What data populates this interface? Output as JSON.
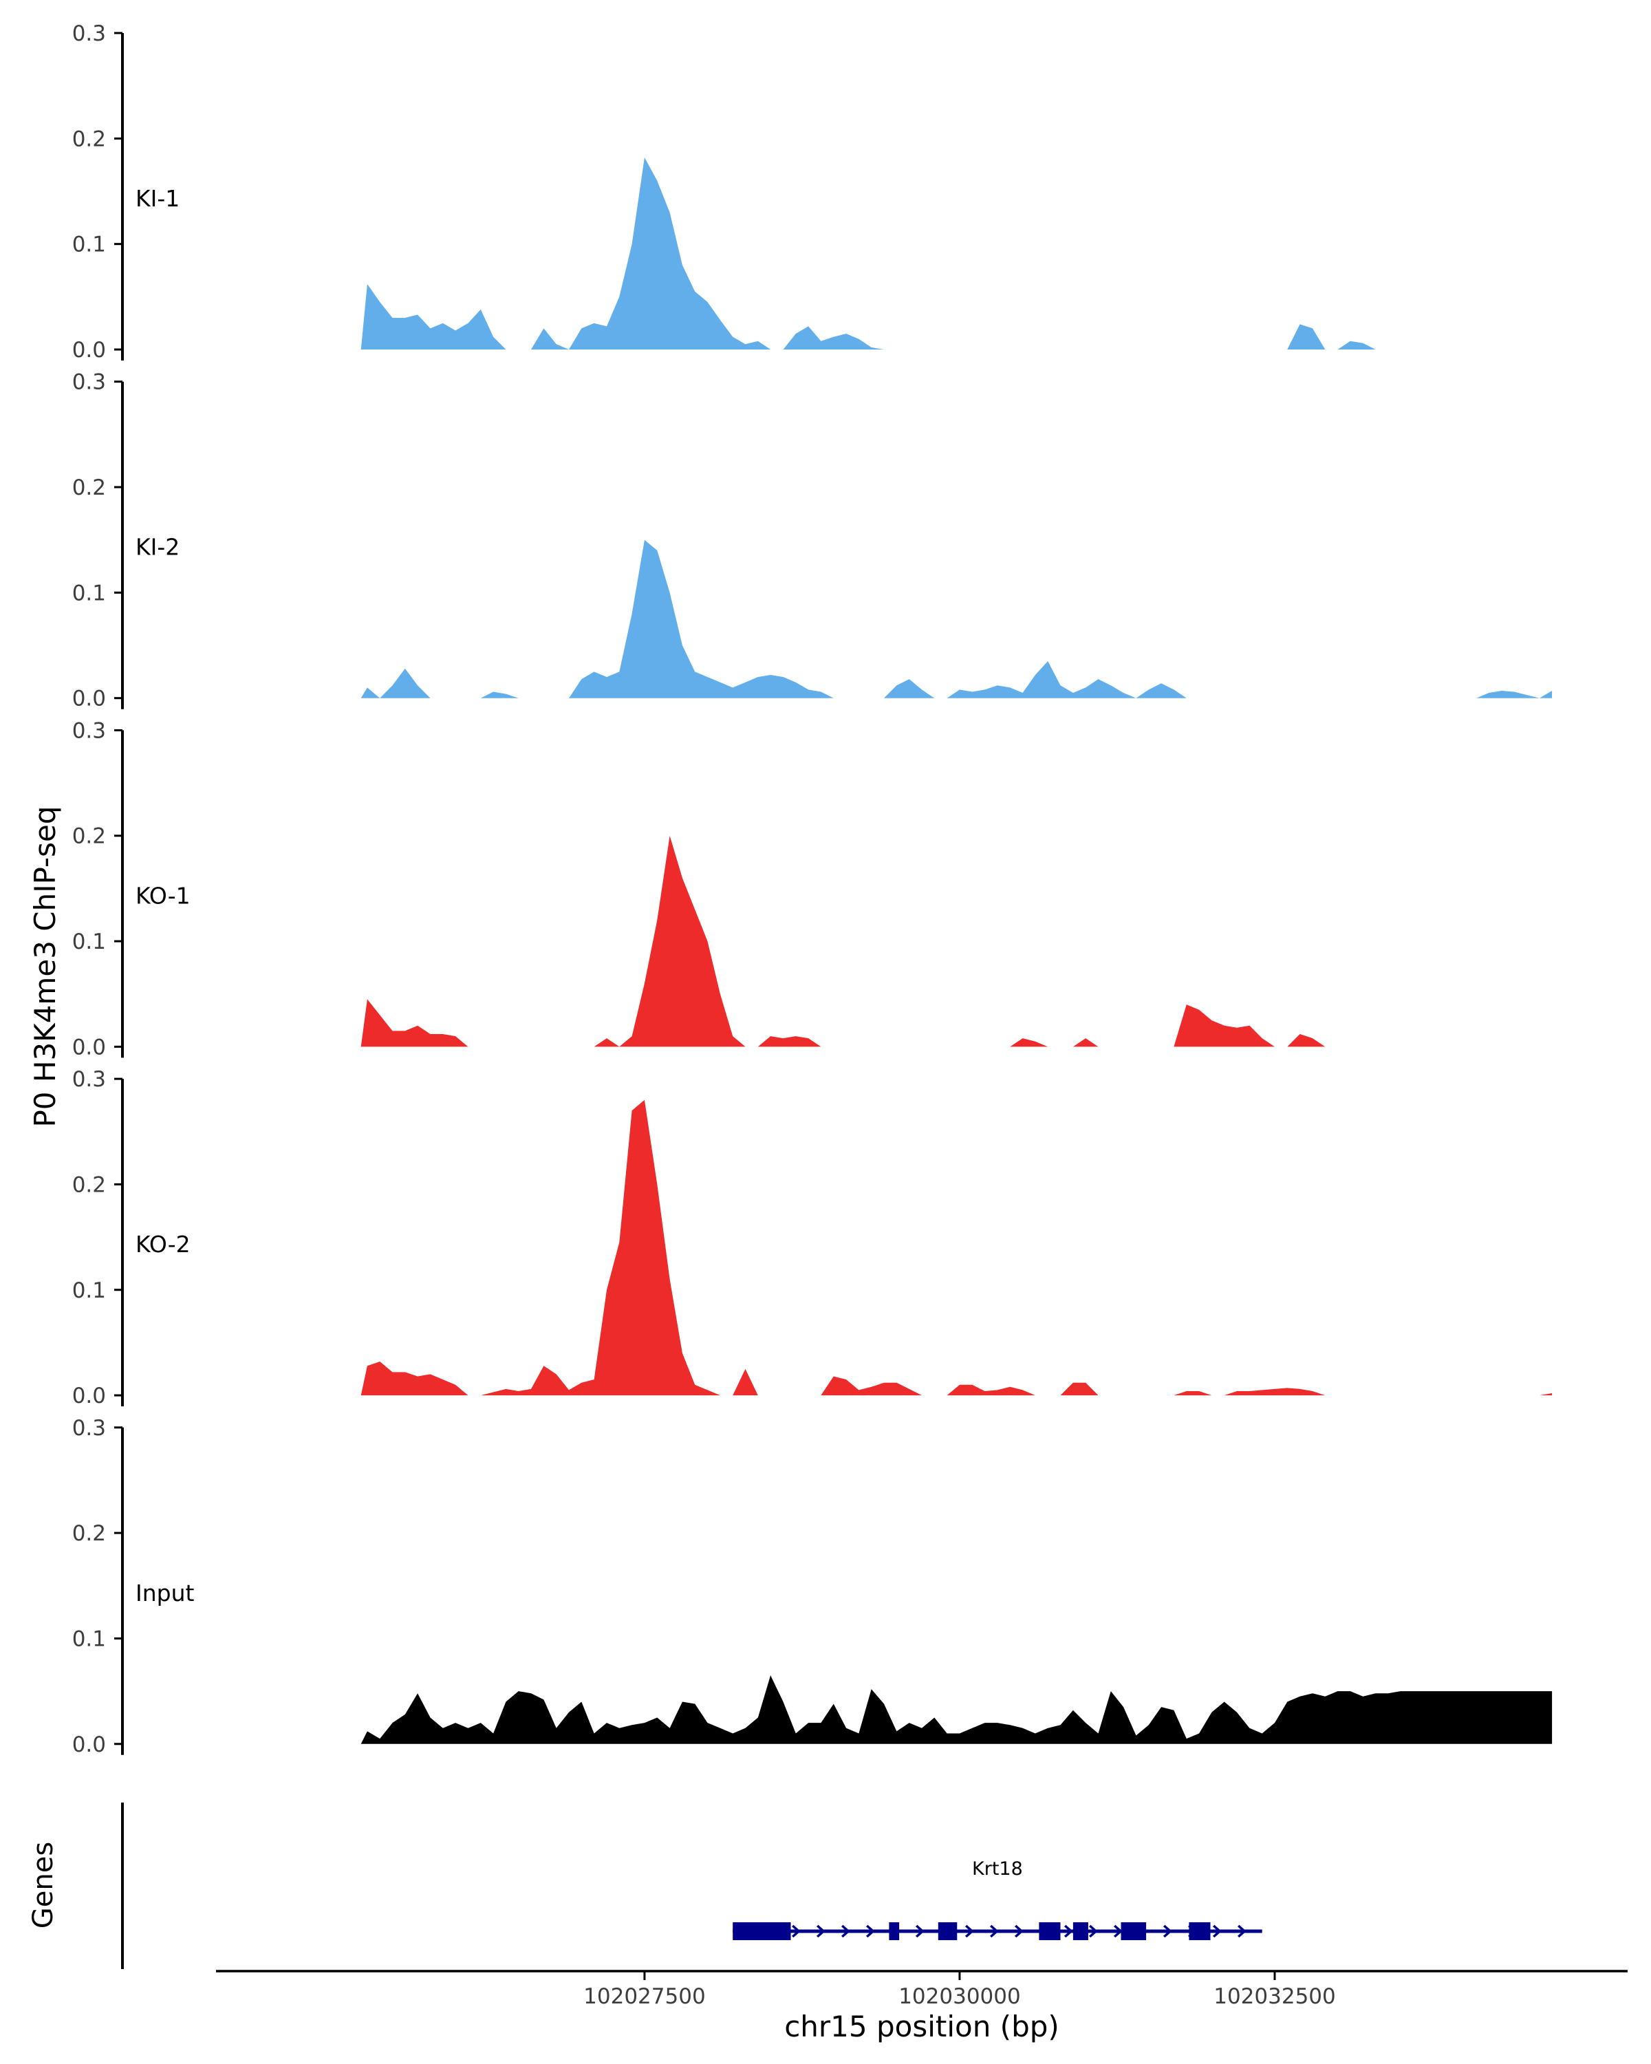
{
  "chart_data": {
    "type": "area",
    "title": "",
    "ylabel": "P0 H3K4me3 ChIP-seq",
    "xlabel": "chr15 position (bp)",
    "xlim": [
      102024100,
      102035300
    ],
    "x_ticks": [
      102027500,
      102030000,
      102032500
    ],
    "x_tick_labels": [
      "102027500",
      "102030000",
      "102032500"
    ],
    "ylim": [
      0,
      0.3
    ],
    "y_ticks": [
      0,
      0.1,
      0.2,
      0.3
    ],
    "y_tick_labels": [
      "0.0",
      "0.1",
      "0.2",
      "0.3"
    ],
    "grid": false,
    "colors": {
      "KI": "#62aeeb",
      "KO": "#ee2b2b",
      "Input": "#000000",
      "gene": "#00008b",
      "axis": "#000000",
      "text": "#3d3d3d"
    },
    "series": [
      {
        "name": "KI-1",
        "color": "#62aeeb",
        "x": [
          102025250,
          102025300,
          102025400,
          102025500,
          102025600,
          102025700,
          102025800,
          102025900,
          102026000,
          102026100,
          102026200,
          102026300,
          102026400,
          102026500,
          102026600,
          102026700,
          102026800,
          102026900,
          102027000,
          102027100,
          102027200,
          102027300,
          102027400,
          102027500,
          102027600,
          102027700,
          102027800,
          102027900,
          102028000,
          102028100,
          102028200,
          102028300,
          102028400,
          102028500,
          102028600,
          102028700,
          102028800,
          102028900,
          102029000,
          102029100,
          102029200,
          102029300,
          102029400,
          102029500,
          102029600,
          102029700,
          102029800,
          102029900,
          102030000,
          102030100,
          102030200,
          102030300,
          102030400,
          102030500,
          102030600,
          102030700,
          102030800,
          102030900,
          102031000,
          102031100,
          102031200,
          102031300,
          102031400,
          102031500,
          102031600,
          102031700,
          102031800,
          102031900,
          102032000,
          102032100,
          102032200,
          102032300,
          102032400,
          102032500,
          102032600,
          102032700,
          102032800,
          102032900,
          102033000,
          102033100,
          102033200,
          102033300,
          102033400,
          102033500
        ],
        "y": [
          0,
          0.062,
          0.045,
          0.03,
          0.03,
          0.033,
          0.02,
          0.025,
          0.018,
          0.025,
          0.038,
          0.012,
          0,
          0,
          0,
          0.02,
          0.005,
          0,
          0.02,
          0.025,
          0.022,
          0.05,
          0.1,
          0.182,
          0.16,
          0.13,
          0.08,
          0.055,
          0.045,
          0.028,
          0.012,
          0.005,
          0.008,
          0,
          0,
          0.015,
          0.022,
          0.008,
          0.012,
          0.015,
          0.01,
          0.002,
          0,
          0,
          0,
          0,
          0,
          0,
          0,
          0,
          0,
          0,
          0,
          0,
          0,
          0,
          0,
          0,
          0,
          0,
          0,
          0,
          0,
          0,
          0,
          0,
          0,
          0,
          0,
          0,
          0,
          0,
          0,
          0,
          0,
          0.024,
          0.02,
          0,
          0,
          0.008,
          0.006,
          0,
          0,
          0
        ]
      },
      {
        "name": "KI-2",
        "color": "#62aeeb",
        "x": [
          102025250,
          102025300,
          102025400,
          102025500,
          102025600,
          102025700,
          102025800,
          102025900,
          102026000,
          102026100,
          102026200,
          102026300,
          102026400,
          102026500,
          102026600,
          102026700,
          102026800,
          102026900,
          102027000,
          102027100,
          102027200,
          102027300,
          102027400,
          102027500,
          102027600,
          102027700,
          102027800,
          102027900,
          102028000,
          102028100,
          102028200,
          102028300,
          102028400,
          102028500,
          102028600,
          102028700,
          102028800,
          102028900,
          102029000,
          102029100,
          102029200,
          102029300,
          102029400,
          102029500,
          102029600,
          102029700,
          102029800,
          102029900,
          102030000,
          102030100,
          102030200,
          102030300,
          102030400,
          102030500,
          102030600,
          102030700,
          102030800,
          102030900,
          102031000,
          102031100,
          102031200,
          102031300,
          102031400,
          102031500,
          102031600,
          102031700,
          102031800,
          102031900,
          102032000,
          102032100,
          102032200,
          102032300,
          102032400,
          102032500,
          102032600,
          102032700,
          102032800,
          102032900,
          102033000,
          102033100,
          102033200,
          102033300,
          102033400,
          102033500,
          102033600,
          102033700,
          102033800,
          102033900,
          102034000,
          102034100,
          102034200,
          102034300,
          102034400,
          102034500,
          102034600,
          102034700
        ],
        "y": [
          0,
          0.01,
          0,
          0.012,
          0.028,
          0.012,
          0,
          0,
          0,
          0,
          0,
          0.006,
          0.004,
          0,
          0,
          0,
          0,
          0,
          0.018,
          0.025,
          0.02,
          0.025,
          0.08,
          0.15,
          0.14,
          0.1,
          0.05,
          0.025,
          0.02,
          0.015,
          0.01,
          0.015,
          0.02,
          0.022,
          0.02,
          0.015,
          0.008,
          0.006,
          0,
          0,
          0,
          0,
          0,
          0.012,
          0.018,
          0.008,
          0,
          0,
          0.008,
          0.006,
          0.008,
          0.012,
          0.01,
          0.005,
          0.022,
          0.035,
          0.012,
          0.005,
          0.01,
          0.018,
          0.012,
          0.005,
          0,
          0.008,
          0.014,
          0.008,
          0,
          0,
          0,
          0,
          0,
          0,
          0,
          0,
          0,
          0,
          0,
          0,
          0,
          0,
          0,
          0,
          0,
          0,
          0,
          0,
          0,
          0,
          0,
          0,
          0.005,
          0.007,
          0.006,
          0.003,
          0,
          0.007
        ]
      },
      {
        "name": "KO-1",
        "color": "#ee2b2b",
        "x": [
          102025250,
          102025300,
          102025400,
          102025500,
          102025600,
          102025700,
          102025800,
          102025900,
          102026000,
          102026100,
          102026200,
          102026300,
          102026400,
          102026500,
          102026600,
          102026700,
          102026800,
          102026900,
          102027000,
          102027100,
          102027200,
          102027300,
          102027400,
          102027500,
          102027600,
          102027700,
          102027800,
          102027900,
          102028000,
          102028100,
          102028200,
          102028300,
          102028400,
          102028500,
          102028600,
          102028700,
          102028800,
          102028900,
          102029000,
          102029100,
          102029200,
          102029300,
          102029400,
          102029500,
          102029600,
          102029700,
          102029800,
          102029900,
          102030000,
          102030100,
          102030200,
          102030300,
          102030400,
          102030500,
          102030600,
          102030700,
          102030800,
          102030900,
          102031000,
          102031100,
          102031200,
          102031300,
          102031400,
          102031500,
          102031600,
          102031700,
          102031800,
          102031900,
          102032000,
          102032100,
          102032200,
          102032300,
          102032400,
          102032500,
          102032600,
          102032700,
          102032800,
          102032900,
          102033000,
          102033100,
          102033200
        ],
        "y": [
          0,
          0.045,
          0.03,
          0.015,
          0.015,
          0.02,
          0.012,
          0.012,
          0.01,
          0,
          0,
          0,
          0,
          0,
          0,
          0,
          0,
          0,
          0,
          0,
          0.008,
          0,
          0.01,
          0.06,
          0.12,
          0.2,
          0.16,
          0.13,
          0.1,
          0.05,
          0.01,
          0,
          0,
          0.01,
          0.008,
          0.01,
          0.008,
          0,
          0,
          0,
          0,
          0,
          0,
          0,
          0,
          0,
          0,
          0,
          0,
          0,
          0,
          0,
          0,
          0.008,
          0.005,
          0,
          0,
          0,
          0.008,
          0,
          0,
          0,
          0,
          0,
          0,
          0,
          0.04,
          0.035,
          0.025,
          0.02,
          0.018,
          0.02,
          0.008,
          0,
          0,
          0.012,
          0.008,
          0,
          0,
          0,
          0
        ]
      },
      {
        "name": "KO-2",
        "color": "#ee2b2b",
        "x": [
          102025250,
          102025300,
          102025400,
          102025500,
          102025600,
          102025700,
          102025800,
          102025900,
          102026000,
          102026100,
          102026200,
          102026300,
          102026400,
          102026500,
          102026600,
          102026700,
          102026800,
          102026900,
          102027000,
          102027100,
          102027200,
          102027300,
          102027400,
          102027500,
          102027600,
          102027700,
          102027800,
          102027900,
          102028000,
          102028100,
          102028200,
          102028300,
          102028400,
          102028500,
          102028600,
          102028700,
          102028800,
          102028900,
          102029000,
          102029100,
          102029200,
          102029300,
          102029400,
          102029500,
          102029600,
          102029700,
          102029800,
          102029900,
          102030000,
          102030100,
          102030200,
          102030300,
          102030400,
          102030500,
          102030600,
          102030700,
          102030800,
          102030900,
          102031000,
          102031100,
          102031200,
          102031300,
          102031400,
          102031500,
          102031600,
          102031700,
          102031800,
          102031900,
          102032000,
          102032100,
          102032200,
          102032300,
          102032400,
          102032500,
          102032600,
          102032700,
          102032800,
          102032900,
          102033000,
          102033100,
          102033200,
          102033300,
          102033400,
          102033500,
          102033600,
          102033700,
          102033800,
          102033900,
          102034000,
          102034100,
          102034200,
          102034300,
          102034400,
          102034500,
          102034600,
          102034700
        ],
        "y": [
          0,
          0.028,
          0.032,
          0.022,
          0.022,
          0.018,
          0.02,
          0.015,
          0.01,
          0,
          0,
          0.003,
          0.006,
          0.004,
          0.006,
          0.028,
          0.02,
          0.005,
          0.012,
          0.015,
          0.1,
          0.145,
          0.27,
          0.28,
          0.2,
          0.11,
          0.04,
          0.01,
          0.005,
          0,
          0,
          0.025,
          0,
          0,
          0,
          0,
          0,
          0,
          0.018,
          0.015,
          0.005,
          0.008,
          0.012,
          0.012,
          0.006,
          0,
          0,
          0,
          0.01,
          0.01,
          0.004,
          0.005,
          0.008,
          0.005,
          0,
          0,
          0,
          0.012,
          0.012,
          0,
          0,
          0,
          0,
          0,
          0,
          0,
          0.004,
          0.004,
          0,
          0,
          0.004,
          0.004,
          0.005,
          0.006,
          0.007,
          0.006,
          0.004,
          0,
          0,
          0,
          0,
          0,
          0,
          0,
          0,
          0,
          0,
          0,
          0,
          0,
          0,
          0,
          0,
          0,
          0,
          0.002
        ]
      },
      {
        "name": "Input",
        "color": "#000000",
        "x": [
          102025250,
          102025300,
          102025400,
          102025500,
          102025600,
          102025700,
          102025800,
          102025900,
          102026000,
          102026100,
          102026200,
          102026300,
          102026400,
          102026500,
          102026600,
          102026700,
          102026800,
          102026900,
          102027000,
          102027100,
          102027200,
          102027300,
          102027400,
          102027500,
          102027600,
          102027700,
          102027800,
          102027900,
          102028000,
          102028100,
          102028200,
          102028300,
          102028400,
          102028500,
          102028600,
          102028700,
          102028800,
          102028900,
          102029000,
          102029100,
          102029200,
          102029300,
          102029400,
          102029500,
          102029600,
          102029700,
          102029800,
          102029900,
          102030000,
          102030100,
          102030200,
          102030300,
          102030400,
          102030500,
          102030600,
          102030700,
          102030800,
          102030900,
          102031000,
          102031100,
          102031200,
          102031300,
          102031400,
          102031500,
          102031600,
          102031700,
          102031800,
          102031900,
          102032000,
          102032100,
          102032200,
          102032300,
          102032400,
          102032500,
          102032600,
          102032700,
          102032800,
          102032900,
          102033000,
          102033100,
          102033200,
          102033300,
          102033400,
          102033500,
          102033600,
          102033700,
          102033800,
          102033900,
          102034000,
          102034100,
          102034200,
          102034300,
          102034400,
          102034500,
          102034600,
          102034700
        ],
        "y": [
          0,
          0.012,
          0.005,
          0.02,
          0.028,
          0.048,
          0.025,
          0.015,
          0.02,
          0.015,
          0.02,
          0.01,
          0.04,
          0.05,
          0.048,
          0.042,
          0.015,
          0.03,
          0.04,
          0.01,
          0.02,
          0.015,
          0.018,
          0.02,
          0.025,
          0.015,
          0.04,
          0.038,
          0.02,
          0.015,
          0.01,
          0.015,
          0.025,
          0.065,
          0.04,
          0.01,
          0.02,
          0.02,
          0.038,
          0.015,
          0.01,
          0.052,
          0.038,
          0.012,
          0.02,
          0.015,
          0.025,
          0.01,
          0.01,
          0.015,
          0.02,
          0.02,
          0.018,
          0.015,
          0.01,
          0.015,
          0.018,
          0.032,
          0.02,
          0.01,
          0.05,
          0.035,
          0.008,
          0.018,
          0.035,
          0.032,
          0.005,
          0.01,
          0.03,
          0.04,
          0.03,
          0.015,
          0.01,
          0.02,
          0.04,
          0.045,
          0.048,
          0.045,
          0.05,
          0.05,
          0.045,
          0.048,
          0.048,
          0.05,
          0.05,
          0.05,
          0.05,
          0.05,
          0.05,
          0.05,
          0.05,
          0.05,
          0.05,
          0.05,
          0.05,
          0.05
        ]
      }
    ],
    "gene_track": {
      "title": "Genes",
      "gene": "Krt18",
      "strand": "+",
      "start": 102028200,
      "end": 102032400,
      "exons": [
        [
          102028200,
          102028660
        ],
        [
          102029440,
          102029520
        ],
        [
          102029830,
          102029980
        ],
        [
          102030630,
          102030800
        ],
        [
          102030900,
          102031020
        ],
        [
          102031280,
          102031480
        ],
        [
          102031820,
          102031990
        ]
      ]
    }
  }
}
